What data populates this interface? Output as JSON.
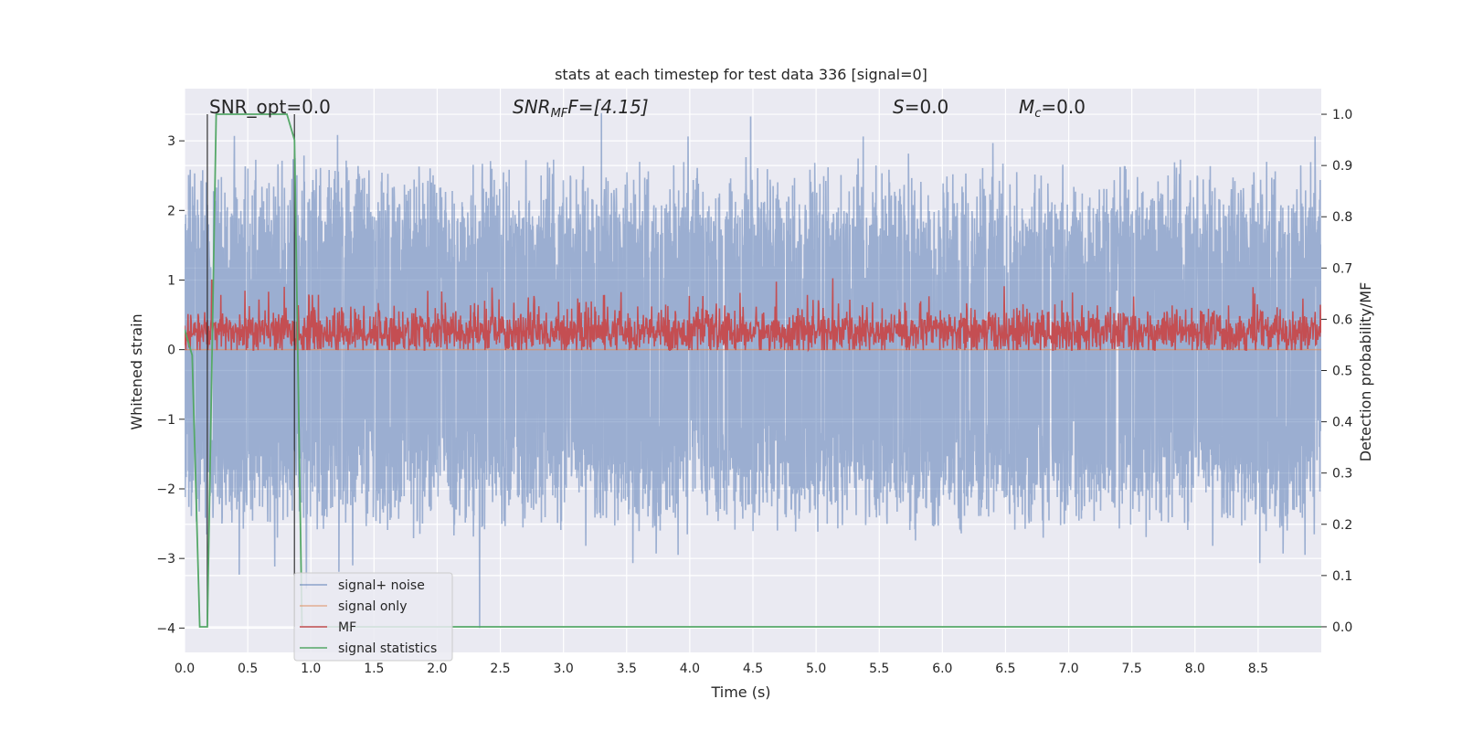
{
  "chart_data": {
    "type": "line",
    "title": "stats at each timestep for test data 336 [signal=0]",
    "xlabel": "Time (s)",
    "ylabel": "Whitened strain",
    "ylabel_right": "Detection probability/MF",
    "xlim": [
      0.0,
      9.0
    ],
    "ylim": [
      -4.35,
      3.75
    ],
    "ylim_right": [
      -0.05,
      1.05
    ],
    "x_ticks": [
      "0.0",
      "0.5",
      "1.0",
      "1.5",
      "2.0",
      "2.5",
      "3.0",
      "3.5",
      "4.0",
      "4.5",
      "5.0",
      "5.5",
      "6.0",
      "6.5",
      "7.0",
      "7.5",
      "8.0",
      "8.5"
    ],
    "y_ticks": [
      "3",
      "2",
      "1",
      "0",
      "−1",
      "−2",
      "−3",
      "−4"
    ],
    "y_ticks_right": [
      "1.0",
      "0.9",
      "0.8",
      "0.7",
      "0.6",
      "0.5",
      "0.4",
      "0.3",
      "0.2",
      "0.1",
      "0.0"
    ],
    "grid": true,
    "legend_position": "lower-left",
    "annotations": {
      "snr_opt": "SNR_opt=0.0",
      "snr_mf_main": "SNR",
      "snr_mf_sub": "MF",
      "snr_mf_value": "F=[4.15]",
      "s_var": "S",
      "s_value": "=0.0",
      "mc_var": "M",
      "mc_sub": "c",
      "mc_value": "=0.0"
    },
    "series": [
      {
        "name": "signal+ noise",
        "color": "#4c72b0",
        "description_axis": "left",
        "typical_range": [
          -1.8,
          1.8
        ],
        "peak_max": 3.4,
        "peak_min": -4.0
      },
      {
        "name": "signal only",
        "color": "#dd8452",
        "description_axis": "left",
        "values_constant": 0.0
      },
      {
        "name": "MF",
        "color": "#c44e52",
        "description_axis": "right",
        "typical_range": [
          0.55,
          0.6
        ],
        "peak_max": 0.68
      },
      {
        "name": "signal statistics",
        "color": "#55a868",
        "description_axis": "right",
        "x": [
          0.0,
          0.06,
          0.12,
          0.18,
          0.25,
          0.81,
          0.87,
          0.93,
          9.0
        ],
        "y": [
          0.58,
          0.53,
          0.0,
          0.0,
          1.0,
          1.0,
          0.95,
          0.0,
          0.0
        ]
      }
    ],
    "vertical_markers": {
      "color": "#262626",
      "x": [
        0.18,
        0.87
      ]
    }
  }
}
